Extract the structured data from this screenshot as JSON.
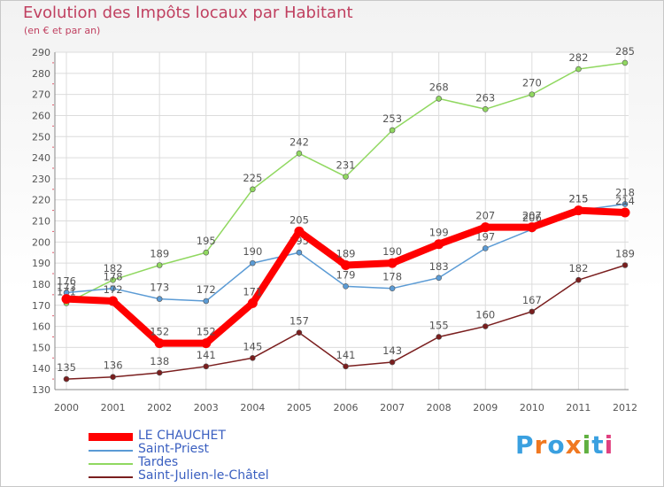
{
  "chart_data": {
    "type": "line",
    "title": "Evolution des Impôts locaux par Habitant",
    "subtitle": "(en € et par an)",
    "xlabel": "",
    "ylabel": "",
    "x": [
      2000,
      2001,
      2002,
      2003,
      2004,
      2005,
      2006,
      2007,
      2008,
      2009,
      2010,
      2011,
      2012
    ],
    "ylim": [
      130,
      290
    ],
    "yticks": [
      130,
      140,
      150,
      160,
      170,
      180,
      190,
      200,
      210,
      220,
      230,
      240,
      250,
      260,
      270,
      280,
      290
    ],
    "grid": true,
    "legend_position": "bottom-left",
    "series": [
      {
        "name": "Saint-Julien-le-Châtel",
        "color": "#7a1e1e",
        "values": [
          135,
          136,
          138,
          141,
          145,
          157,
          141,
          143,
          155,
          160,
          167,
          182,
          189
        ]
      },
      {
        "name": "Tardes",
        "color": "#90d860",
        "values": [
          171,
          182,
          189,
          195,
          225,
          242,
          231,
          253,
          268,
          263,
          270,
          282,
          285
        ]
      },
      {
        "name": "Saint-Priest",
        "color": "#5b9bd5",
        "values": [
          176,
          178,
          173,
          172,
          190,
          195,
          179,
          178,
          183,
          197,
          206,
          215,
          218
        ]
      },
      {
        "name": "LE CHAUCHET",
        "color": "#ff0000",
        "values": [
          173,
          172,
          152,
          152,
          171,
          205,
          189,
          190,
          199,
          207,
          207,
          215,
          214
        ]
      }
    ]
  },
  "legend": {
    "items": [
      {
        "label": "LE CHAUCHET",
        "color": "#ff0000"
      },
      {
        "label": "Saint-Priest",
        "color": "#5b9bd5"
      },
      {
        "label": "Tardes",
        "color": "#90d860"
      },
      {
        "label": "Saint-Julien-le-Châtel",
        "color": "#7a1e1e"
      }
    ]
  },
  "branding": {
    "logo_text": "Proxiti"
  }
}
